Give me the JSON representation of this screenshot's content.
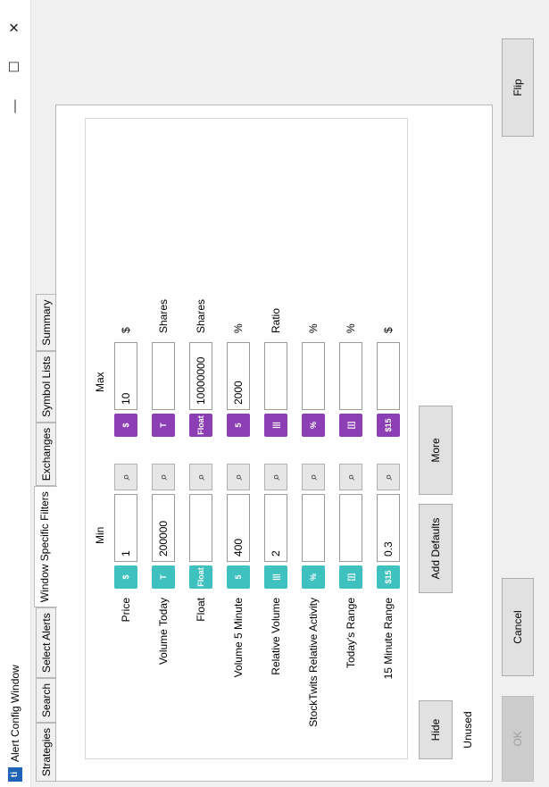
{
  "window": {
    "title": "Alert Config Window",
    "icon_text": "ti",
    "minimize_symbol": "—",
    "maximize_symbol": "☐",
    "close_symbol": "✕"
  },
  "tabs": [
    "Strategies",
    "Search",
    "Select Alerts",
    "Window Specific Filters",
    "Exchanges",
    "Symbol Lists",
    "Summary"
  ],
  "active_tab": "Window Specific Filters",
  "columns": {
    "min": "Min",
    "max": "Max"
  },
  "filters": [
    {
      "label": "Price",
      "icon": "$",
      "min": "1",
      "max": "10",
      "unit": "$"
    },
    {
      "label": "Volume Today",
      "icon": "T",
      "min": "200000",
      "max": "",
      "unit": "Shares"
    },
    {
      "label": "Float",
      "icon": "Float",
      "min": "",
      "max": "10000000",
      "unit": "Shares"
    },
    {
      "label": "Volume 5 Minute",
      "icon": "5",
      "min": "400",
      "max": "2000",
      "unit": "%"
    },
    {
      "label": "Relative Volume",
      "icon": "|||",
      "min": "2",
      "max": "",
      "unit": "Ratio"
    },
    {
      "label": "StockTwits Relative Activity",
      "icon": "%",
      "min": "",
      "max": "",
      "unit": "%"
    },
    {
      "label": "Today's Range",
      "icon": "[|]",
      "min": "",
      "max": "",
      "unit": "%"
    },
    {
      "label": "15 Minute Range",
      "icon": "$15",
      "min": "0.3",
      "max": "",
      "unit": "$"
    }
  ],
  "search_glyph": "⌕",
  "buttons": {
    "hide_unused": "Hide Unused",
    "add_defaults": "Add Defaults",
    "more": "More",
    "ok": "OK",
    "cancel": "Cancel",
    "flip": "Flip"
  },
  "colors": {
    "min_icon": "#3fc1c0",
    "max_icon": "#8c3fb5"
  }
}
